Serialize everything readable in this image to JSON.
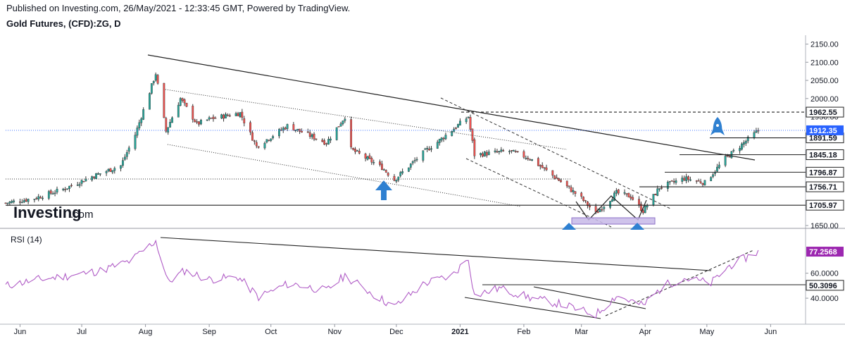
{
  "header": {
    "published": "Published on Investing.com, 26/May/2021 - 12:33:45 GMT, Powered by TradingView.",
    "title": "Gold Futures, (CFD):ZG, D"
  },
  "logo": {
    "main": "Investing",
    "suffix": ".com"
  },
  "colors": {
    "up_candle": "#26a69a",
    "down_candle": "#ef5350",
    "rsi_line": "#b05cc6",
    "price_tag": "#2962ff",
    "rsi_tag": "#9c27b0",
    "arrow": "#2f80d1",
    "support_box": "#c7b8e8"
  },
  "chart_data": [
    {
      "type": "candlestick",
      "title": "Gold Futures, (CFD):ZG, D",
      "x_range": [
        "2020-05-25",
        "2021-06-18"
      ],
      "ylim": [
        1650,
        2150
      ],
      "ytick_labels": [
        "1650.00",
        "1700.00",
        "1750.00",
        "1800.00",
        "1850.00",
        "1900.00",
        "1950.00",
        "2000.00",
        "2050.00",
        "2100.00",
        "2150.00"
      ],
      "xtick_labels": [
        "Jun",
        "Jul",
        "Aug",
        "Sep",
        "Oct",
        "Nov",
        "Dec",
        "2021",
        "Feb",
        "Mar",
        "Apr",
        "May",
        "Jun"
      ],
      "approx_close_path": [
        [
          "2020-05-25",
          1712
        ],
        [
          "2020-06-08",
          1725
        ],
        [
          "2020-06-22",
          1750
        ],
        [
          "2020-07-06",
          1785
        ],
        [
          "2020-07-20",
          1815
        ],
        [
          "2020-07-27",
          1900
        ],
        [
          "2020-08-06",
          2069
        ],
        [
          "2020-08-11",
          1910
        ],
        [
          "2020-08-18",
          2000
        ],
        [
          "2020-08-26",
          1930
        ],
        [
          "2020-09-02",
          1945
        ],
        [
          "2020-09-16",
          1960
        ],
        [
          "2020-09-24",
          1868
        ],
        [
          "2020-10-09",
          1925
        ],
        [
          "2020-10-28",
          1878
        ],
        [
          "2020-11-06",
          1950
        ],
        [
          "2020-11-09",
          1860
        ],
        [
          "2020-11-24",
          1810
        ],
        [
          "2020-11-30",
          1776
        ],
        [
          "2020-12-15",
          1855
        ],
        [
          "2020-12-21",
          1880
        ],
        [
          "2021-01-05",
          1950
        ],
        [
          "2021-01-08",
          1845
        ],
        [
          "2021-01-25",
          1855
        ],
        [
          "2021-02-04",
          1835
        ],
        [
          "2021-02-18",
          1775
        ],
        [
          "2021-03-01",
          1725
        ],
        [
          "2021-03-08",
          1683
        ],
        [
          "2021-03-18",
          1740
        ],
        [
          "2021-03-25",
          1730
        ],
        [
          "2021-03-31",
          1690
        ],
        [
          "2021-04-08",
          1755
        ],
        [
          "2021-04-20",
          1780
        ],
        [
          "2021-04-30",
          1768
        ],
        [
          "2021-05-10",
          1835
        ],
        [
          "2021-05-17",
          1868
        ],
        [
          "2021-05-26",
          1912
        ]
      ],
      "levels": [
        {
          "value": 1962.55,
          "label": "1962.55",
          "style": "dashed"
        },
        {
          "value": 1891.59,
          "label": "1891.59",
          "style": "solid"
        },
        {
          "value": 1845.18,
          "label": "1845.18",
          "style": "solid"
        },
        {
          "value": 1796.87,
          "label": "1796.87",
          "style": "solid"
        },
        {
          "value": 1756.71,
          "label": "1756.71",
          "style": "solid"
        },
        {
          "value": 1705.97,
          "label": "1705.97",
          "style": "solid"
        }
      ],
      "last_price": {
        "value": 1912.35,
        "label": "1912.35"
      }
    },
    {
      "type": "line",
      "title": "RSI (14)",
      "x_range": [
        "2020-05-25",
        "2021-06-18"
      ],
      "ytick_labels": [
        "40.0000",
        "60.0000"
      ],
      "series": [
        {
          "name": "RSI (14)",
          "approx_path": [
            [
              "2020-05-25",
              50
            ],
            [
              "2020-06-10",
              55
            ],
            [
              "2020-06-25",
              58
            ],
            [
              "2020-07-10",
              62
            ],
            [
              "2020-07-25",
              70
            ],
            [
              "2020-08-06",
              86
            ],
            [
              "2020-08-12",
              53
            ],
            [
              "2020-08-20",
              62
            ],
            [
              "2020-09-01",
              55
            ],
            [
              "2020-09-15",
              57
            ],
            [
              "2020-09-25",
              41
            ],
            [
              "2020-10-10",
              52
            ],
            [
              "2020-10-28",
              46
            ],
            [
              "2020-11-06",
              58
            ],
            [
              "2020-11-20",
              43
            ],
            [
              "2020-11-30",
              33
            ],
            [
              "2020-12-15",
              52
            ],
            [
              "2020-12-28",
              58
            ],
            [
              "2021-01-05",
              72
            ],
            [
              "2021-01-08",
              42
            ],
            [
              "2021-01-20",
              48
            ],
            [
              "2021-02-05",
              40
            ],
            [
              "2021-02-20",
              35
            ],
            [
              "2021-03-01",
              30
            ],
            [
              "2021-03-08",
              27
            ],
            [
              "2021-03-18",
              42
            ],
            [
              "2021-03-31",
              34
            ],
            [
              "2021-04-10",
              50
            ],
            [
              "2021-04-20",
              56
            ],
            [
              "2021-05-03",
              52
            ],
            [
              "2021-05-12",
              66
            ],
            [
              "2021-05-26",
              77.2568
            ]
          ]
        }
      ],
      "last_value": {
        "value": 77.2568,
        "label": "77.2568"
      },
      "level_tag": {
        "value": 50.3096,
        "label": "50.3096"
      }
    }
  ]
}
